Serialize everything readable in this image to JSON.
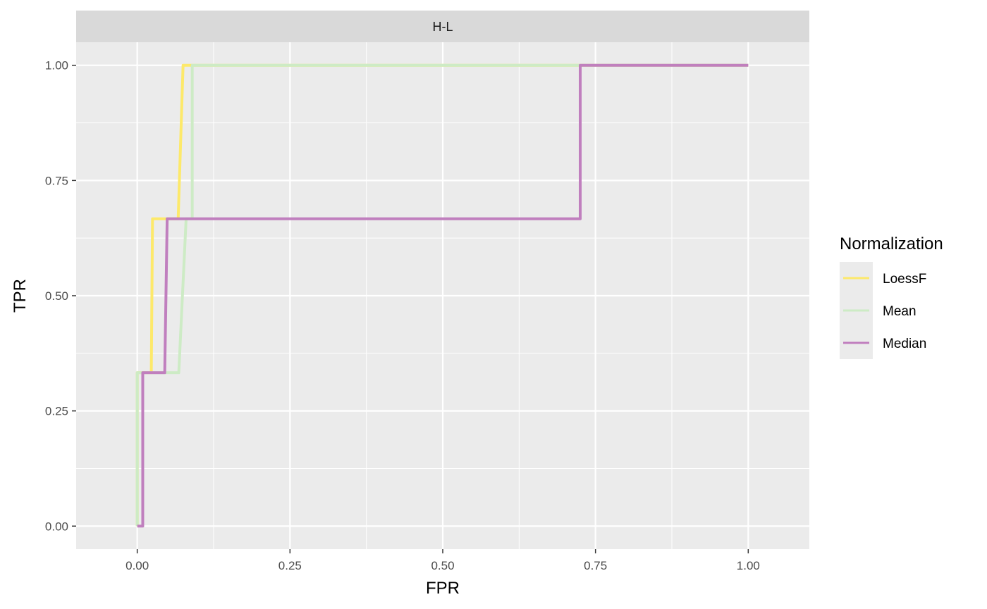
{
  "chart_data": {
    "type": "line",
    "facet": "H-L",
    "xlabel": "FPR",
    "ylabel": "TPR",
    "xlim": [
      -0.1,
      1.1
    ],
    "ylim": [
      -0.05,
      1.05
    ],
    "x_ticks": [
      0.0,
      0.25,
      0.5,
      0.75,
      1.0
    ],
    "x_tick_labels": [
      "0.00",
      "0.25",
      "0.50",
      "0.75",
      "1.00"
    ],
    "y_ticks": [
      0.0,
      0.25,
      0.5,
      0.75,
      1.0
    ],
    "y_tick_labels": [
      "0.00",
      "0.25",
      "0.50",
      "0.75",
      "1.00"
    ],
    "grid": true,
    "legend": {
      "title": "Normalization",
      "position": "right"
    },
    "series": [
      {
        "name": "LoessF",
        "color": "#fde96a",
        "x": [
          0.0,
          0.0,
          0.008,
          0.023,
          0.025,
          0.067,
          0.075,
          0.083,
          0.09,
          1.0
        ],
        "y": [
          0.0,
          0.333,
          0.333,
          0.333,
          0.667,
          0.667,
          1.0,
          1.0,
          1.0,
          1.0
        ]
      },
      {
        "name": "Mean",
        "color": "#cdebc5",
        "x": [
          0.0,
          0.0,
          0.068,
          0.08,
          0.09,
          0.09,
          1.0
        ],
        "y": [
          0.0,
          0.333,
          0.333,
          0.667,
          0.667,
          1.0,
          1.0
        ]
      },
      {
        "name": "Median",
        "color": "#c07fbe",
        "x": [
          0.0,
          0.009,
          0.009,
          0.045,
          0.049,
          0.725,
          0.725,
          1.0
        ],
        "y": [
          0.0,
          0.0,
          0.333,
          0.333,
          0.667,
          0.667,
          1.0,
          1.0
        ]
      }
    ]
  }
}
